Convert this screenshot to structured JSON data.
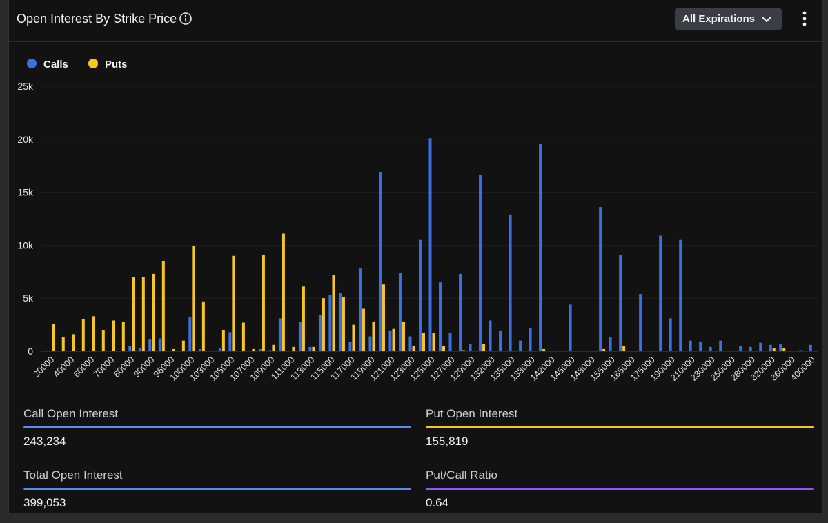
{
  "header": {
    "title": "Open Interest By Strike Price",
    "button": "All Expirations"
  },
  "chart_data": {
    "type": "bar",
    "categories": [
      "20000",
      null,
      "40000",
      null,
      "60000",
      null,
      "70000",
      null,
      "80000",
      null,
      "90000",
      null,
      "96000",
      null,
      "100000",
      null,
      "103000",
      null,
      "105000",
      null,
      "107000",
      null,
      "109000",
      null,
      "111000",
      null,
      "113000",
      null,
      "115000",
      null,
      "117000",
      null,
      "119000",
      null,
      "121000",
      null,
      "123000",
      null,
      "125000",
      null,
      "127000",
      null,
      "129000",
      null,
      "132000",
      null,
      "135000",
      null,
      "138000",
      null,
      "142000",
      null,
      "145000",
      null,
      "148000",
      null,
      "155000",
      null,
      "165000",
      null,
      "175000",
      null,
      "190000",
      null,
      "210000",
      null,
      "230000",
      null,
      "250000",
      null,
      "280000",
      null,
      "320000",
      null,
      "360000",
      null,
      "400000"
    ],
    "series": [
      {
        "name": "Calls",
        "color": "#3b6fe3",
        "values": [
          0,
          0,
          0,
          0,
          0,
          0,
          0,
          0,
          500,
          300,
          1100,
          1200,
          0,
          0,
          3200,
          200,
          0,
          300,
          1800,
          0,
          0,
          200,
          100,
          3100,
          0,
          2800,
          400,
          3400,
          5300,
          5500,
          900,
          7800,
          1400,
          16900,
          1900,
          7400,
          1400,
          10500,
          20100,
          6500,
          1700,
          7300,
          700,
          16600,
          2900,
          1900,
          12900,
          1000,
          2200,
          19600,
          0,
          0,
          4400,
          0,
          0,
          13600,
          1300,
          9100,
          0,
          5400,
          0,
          10900,
          3100,
          10500,
          1000,
          900,
          400,
          1000,
          0,
          500,
          400,
          800,
          600,
          700,
          0,
          100,
          600
        ]
      },
      {
        "name": "Puts",
        "color": "#f6c624",
        "values": [
          2600,
          1300,
          1600,
          3000,
          3300,
          2000,
          2900,
          2800,
          7000,
          7000,
          7300,
          8500,
          200,
          1000,
          9900,
          4700,
          0,
          2000,
          9000,
          2700,
          200,
          9100,
          600,
          11100,
          400,
          6100,
          400,
          5000,
          7200,
          5100,
          2500,
          4000,
          2800,
          6300,
          2100,
          2800,
          500,
          1700,
          1700,
          500,
          0,
          100,
          0,
          700,
          0,
          0,
          0,
          0,
          0,
          200,
          0,
          0,
          0,
          0,
          0,
          200,
          0,
          500,
          0,
          0,
          0,
          0,
          0,
          0,
          0,
          0,
          0,
          0,
          0,
          0,
          0,
          0,
          300,
          300,
          0,
          0,
          0
        ]
      }
    ],
    "ylim": [
      0,
      25000
    ],
    "yticks": [
      {
        "value": 0,
        "label": "0"
      },
      {
        "value": 5000,
        "label": "5k"
      },
      {
        "value": 10000,
        "label": "10k"
      },
      {
        "value": 15000,
        "label": "15k"
      },
      {
        "value": 20000,
        "label": "20k"
      },
      {
        "value": 25000,
        "label": "25k"
      }
    ],
    "grid": true
  },
  "stats": [
    {
      "label": "Call Open Interest",
      "value": "243,234",
      "color": "#5b8def"
    },
    {
      "label": "Put Open Interest",
      "value": "155,819",
      "color": "#f6c624"
    },
    {
      "label": "Total Open Interest",
      "value": "399,053",
      "color": "#5b8def"
    },
    {
      "label": "Put/Call Ratio",
      "value": "0.64",
      "color": "#8b5cf6"
    }
  ]
}
